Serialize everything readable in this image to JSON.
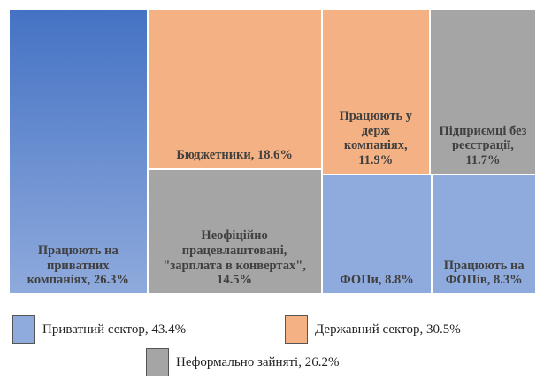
{
  "chart_data": {
    "type": "treemap",
    "series": [
      {
        "name": "Приватний сектор, 43.4%",
        "value": 43.4,
        "color": "#8faadc"
      },
      {
        "name": "Державний сектор, 30.5%",
        "value": 30.5,
        "color": "#f4b183"
      },
      {
        "name": "Неформально зайняті, 26.2%",
        "value": 26.2,
        "color": "#a5a5a5"
      }
    ],
    "items": [
      {
        "label": "Працюють на приватних компаніях, 26.3%",
        "value": 26.3,
        "group": 0
      },
      {
        "label": "Бюджетники, 18.6%",
        "value": 18.6,
        "group": 1
      },
      {
        "label": "Неофіційно працевлаштовані, \"зарплата в конвертах\", 14.5%",
        "value": 14.5,
        "group": 2
      },
      {
        "label": "Працюють у держ компаніях, 11.9%",
        "value": 11.9,
        "group": 1
      },
      {
        "label": "Підприємці без реєстрації, 11.7%",
        "value": 11.7,
        "group": 2
      },
      {
        "label": "ФОПи, 8.8%",
        "value": 8.8,
        "group": 0
      },
      {
        "label": "Працюють на ФОПів, 8.3%",
        "value": 8.3,
        "group": 0
      }
    ]
  }
}
